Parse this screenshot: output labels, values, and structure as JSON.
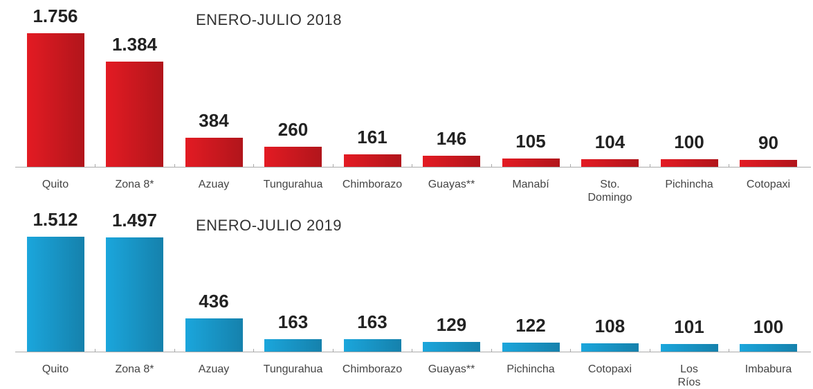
{
  "chart_data": [
    {
      "type": "bar",
      "title": "ENERO-JULIO 2018",
      "color": "#e31b23",
      "categories": [
        "Quito",
        "Zona 8*",
        "Azuay",
        "Tungurahua",
        "Chimborazo",
        "Guayas**",
        "Manabí",
        "Sto.\nDomingo",
        "Pichincha",
        "Cotopaxi"
      ],
      "values": [
        1756,
        1384,
        384,
        260,
        161,
        146,
        105,
        104,
        100,
        90
      ],
      "value_labels": [
        "1.756",
        "1.384",
        "384",
        "260",
        "161",
        "146",
        "105",
        "104",
        "100",
        "90"
      ]
    },
    {
      "type": "bar",
      "title": "ENERO-JULIO 2019",
      "color": "#1ba6dc",
      "categories": [
        "Quito",
        "Zona 8*",
        "Azuay",
        "Tungurahua",
        "Chimborazo",
        "Guayas**",
        "Pichincha",
        "Cotopaxi",
        "Los\nRíos",
        "Imbabura"
      ],
      "values": [
        1512,
        1497,
        436,
        163,
        163,
        129,
        122,
        108,
        101,
        100
      ],
      "value_labels": [
        "1.512",
        "1.497",
        "436",
        "163",
        "163",
        "129",
        "122",
        "108",
        "101",
        "100"
      ]
    }
  ]
}
